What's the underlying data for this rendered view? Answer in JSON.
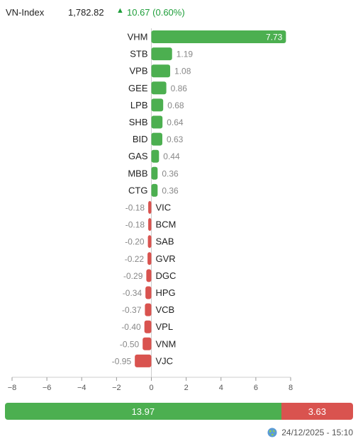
{
  "index": {
    "name": "VN-Index",
    "value": "1,782.82",
    "change": "10.67 (0.60%)",
    "arrow": "▲",
    "up_color": "#1e9e3a"
  },
  "chart_data": {
    "type": "bar",
    "orientation": "horizontal",
    "categories": [
      "VHM",
      "STB",
      "VPB",
      "GEE",
      "LPB",
      "SHB",
      "BID",
      "GAS",
      "MBB",
      "CTG",
      "VIC",
      "BCM",
      "SAB",
      "GVR",
      "DGC",
      "HPG",
      "VCB",
      "VPL",
      "VNM",
      "VJC"
    ],
    "values": [
      7.73,
      1.19,
      1.08,
      0.86,
      0.68,
      0.64,
      0.63,
      0.44,
      0.36,
      0.36,
      -0.18,
      -0.18,
      -0.2,
      -0.22,
      -0.29,
      -0.34,
      -0.37,
      -0.4,
      -0.5,
      -0.95
    ],
    "value_labels": [
      "7.73",
      "1.19",
      "1.08",
      "0.86",
      "0.68",
      "0.64",
      "0.63",
      "0.44",
      "0.36",
      "0.36",
      "-0.18",
      "-0.18",
      "-0.20",
      "-0.22",
      "-0.29",
      "-0.34",
      "-0.37",
      "-0.40",
      "-0.50",
      "-0.95"
    ],
    "xlim": [
      -8,
      8
    ],
    "xticks": [
      -8,
      -6,
      -4,
      -2,
      0,
      2,
      4,
      6,
      8
    ],
    "xtick_labels": [
      "−8",
      "−6",
      "−4",
      "−2",
      "0",
      "2",
      "4",
      "6",
      "8"
    ],
    "grid": false,
    "positive_color": "#4caf50",
    "negative_color": "#d9534f"
  },
  "summary": {
    "positive": {
      "value": 13.97,
      "label": "13.97",
      "color": "#4caf50"
    },
    "negative": {
      "value": 3.63,
      "label": "3.63",
      "color": "#d9534f"
    }
  },
  "footer": {
    "timestamp": "24/12/2025 - 15:10",
    "icon": "globe-icon"
  }
}
